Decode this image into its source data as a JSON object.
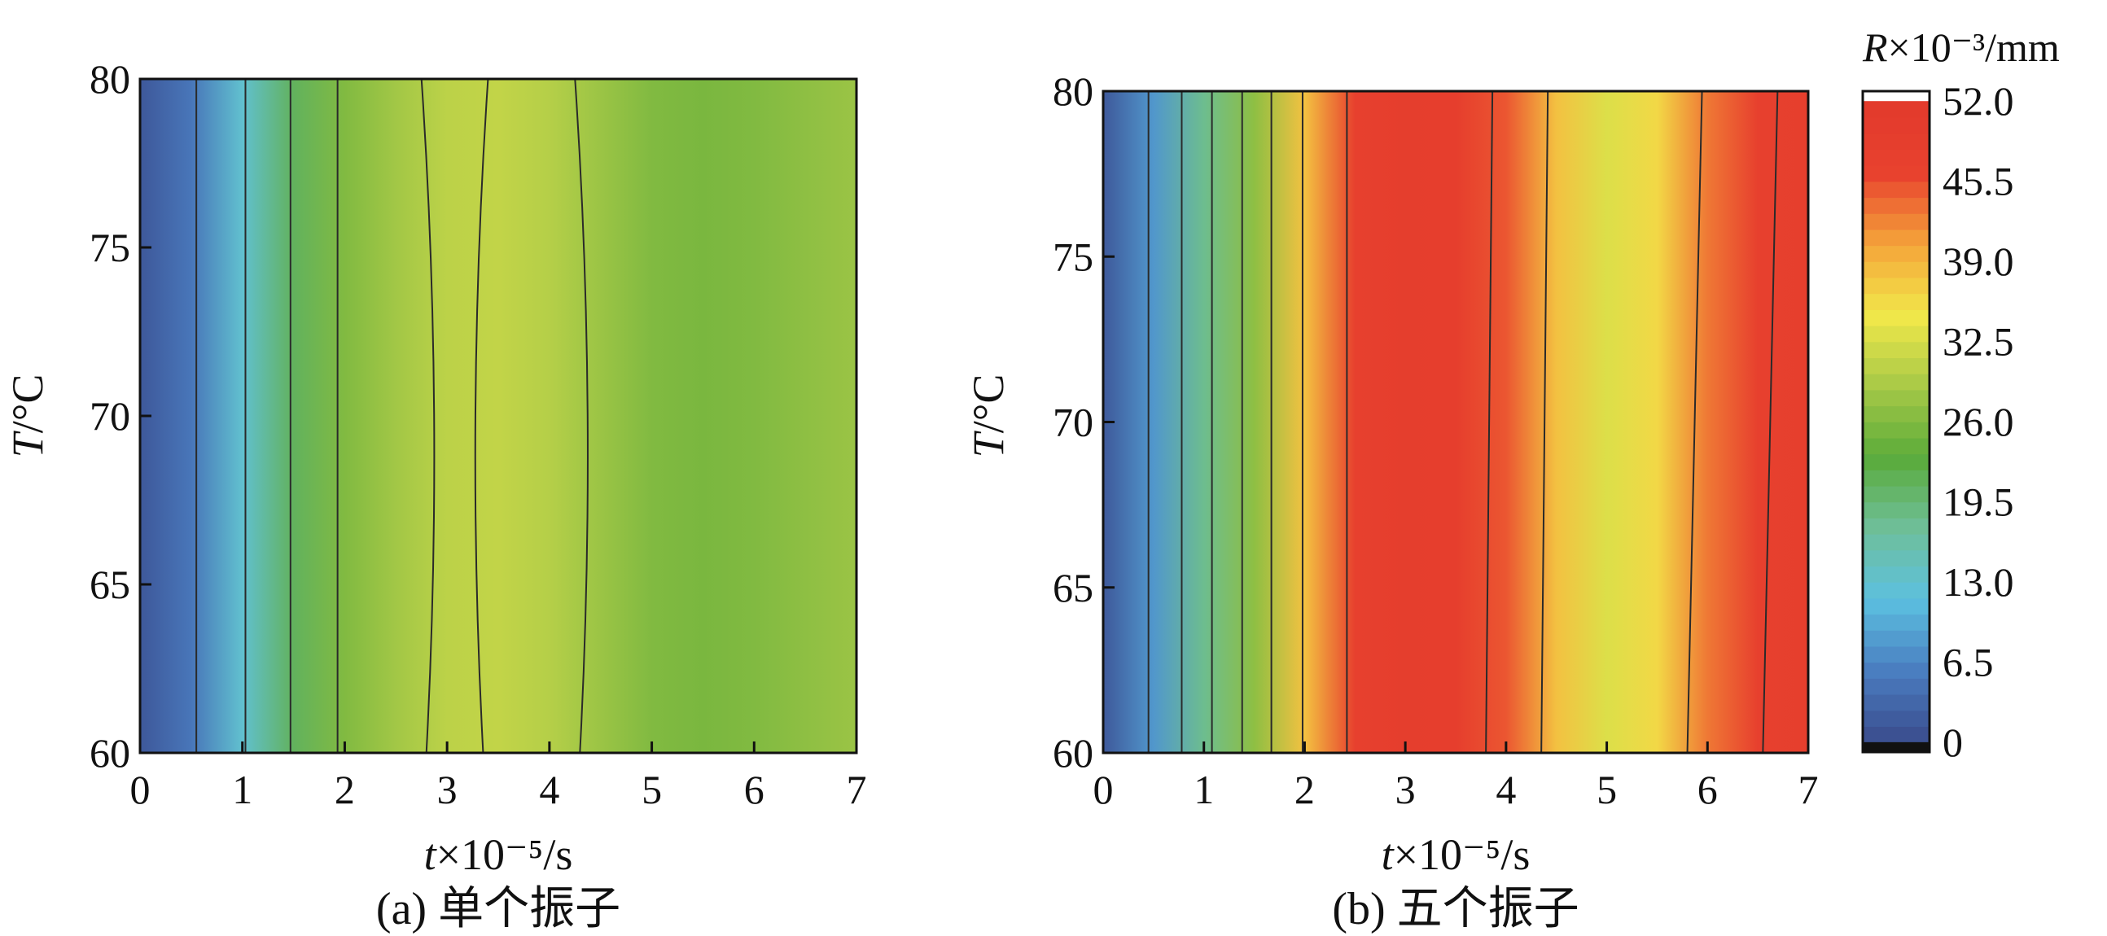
{
  "colorbar": {
    "title_var": "R",
    "title_rest": "×10⁻³/mm",
    "tick_labels": [
      "52.0",
      "45.5",
      "39.0",
      "32.5",
      "26.0",
      "19.5",
      "13.0",
      "6.5",
      "0"
    ],
    "range": [
      0,
      52
    ],
    "colors": [
      "#3a4b8c",
      "#4a7dc0",
      "#5cc0e0",
      "#6fbf9a",
      "#5aab3a",
      "#a7c947",
      "#f2e84a",
      "#f4a43a",
      "#e8412e",
      "#e23a2c"
    ]
  },
  "chart_data": [
    {
      "type": "heatmap",
      "caption": "(a) 单个振子",
      "xlabel_var": "t",
      "xlabel_rest": "×10⁻⁵/s",
      "ylabel_var": "T",
      "ylabel_rest": "/°C",
      "xlim": [
        0,
        7
      ],
      "ylim": [
        60,
        80
      ],
      "x_ticks": [
        "0",
        "1",
        "2",
        "3",
        "4",
        "5",
        "6",
        "7"
      ],
      "y_ticks": [
        "60",
        "65",
        "70",
        "75",
        "80"
      ],
      "x": [
        0,
        0.5,
        1,
        1.5,
        2,
        2.5,
        3,
        3.5,
        4,
        4.5,
        5,
        5.5,
        6,
        6.5,
        7
      ],
      "R_at_T70": [
        1.5,
        5,
        13,
        21,
        26,
        28.5,
        30.5,
        31,
        30,
        28,
        26,
        25.5,
        26,
        27,
        28
      ],
      "contour_lines_x": [
        0.55,
        1.03,
        1.47,
        1.93,
        2.75,
        3.4,
        4.25
      ]
    },
    {
      "type": "heatmap",
      "caption": "(b) 五个振子",
      "xlabel_var": "t",
      "xlabel_rest": "×10⁻⁵/s",
      "ylabel_var": "T",
      "ylabel_rest": "/°C",
      "xlim": [
        0,
        7
      ],
      "ylim": [
        60,
        80
      ],
      "x_ticks": [
        "0",
        "1",
        "2",
        "3",
        "4",
        "5",
        "6",
        "7"
      ],
      "y_ticks": [
        "60",
        "65",
        "70",
        "75",
        "80"
      ],
      "x": [
        0,
        0.5,
        1,
        1.5,
        2,
        2.5,
        3,
        3.5,
        4,
        4.5,
        5,
        5.5,
        6,
        6.5,
        7
      ],
      "R_at_T70": [
        1.5,
        8,
        18,
        27,
        38,
        47,
        49,
        48.5,
        45,
        38,
        33,
        36,
        43,
        47,
        48
      ],
      "contour_lines_x": [
        0.45,
        0.78,
        1.08,
        1.38,
        1.67,
        1.98,
        2.42,
        3.8,
        4.35,
        5.8,
        6.55
      ]
    }
  ]
}
